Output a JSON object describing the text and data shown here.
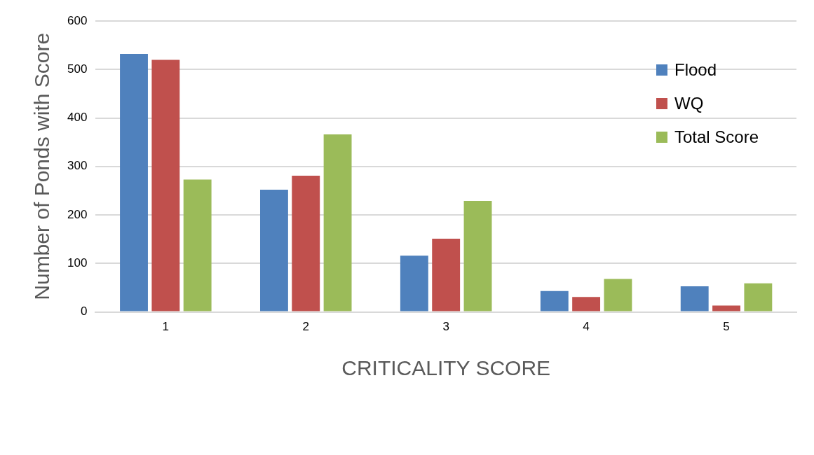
{
  "chart_data": {
    "type": "bar",
    "xlabel": "CRITICALITY SCORE",
    "ylabel": "Number of Ponds with Score",
    "categories": [
      "1",
      "2",
      "3",
      "4",
      "5"
    ],
    "series": [
      {
        "name": "Flood",
        "color": "#4f81bd",
        "values": [
          532,
          252,
          116,
          43,
          53
        ]
      },
      {
        "name": "WQ",
        "color": "#c0504d",
        "values": [
          520,
          281,
          151,
          31,
          13
        ]
      },
      {
        "name": "Total Score",
        "color": "#9bbb59",
        "values": [
          273,
          366,
          229,
          68,
          59
        ]
      }
    ],
    "ylim": [
      0,
      600
    ],
    "yticks": [
      0,
      100,
      200,
      300,
      400,
      500,
      600
    ],
    "grid": "y",
    "legend": "top right"
  }
}
